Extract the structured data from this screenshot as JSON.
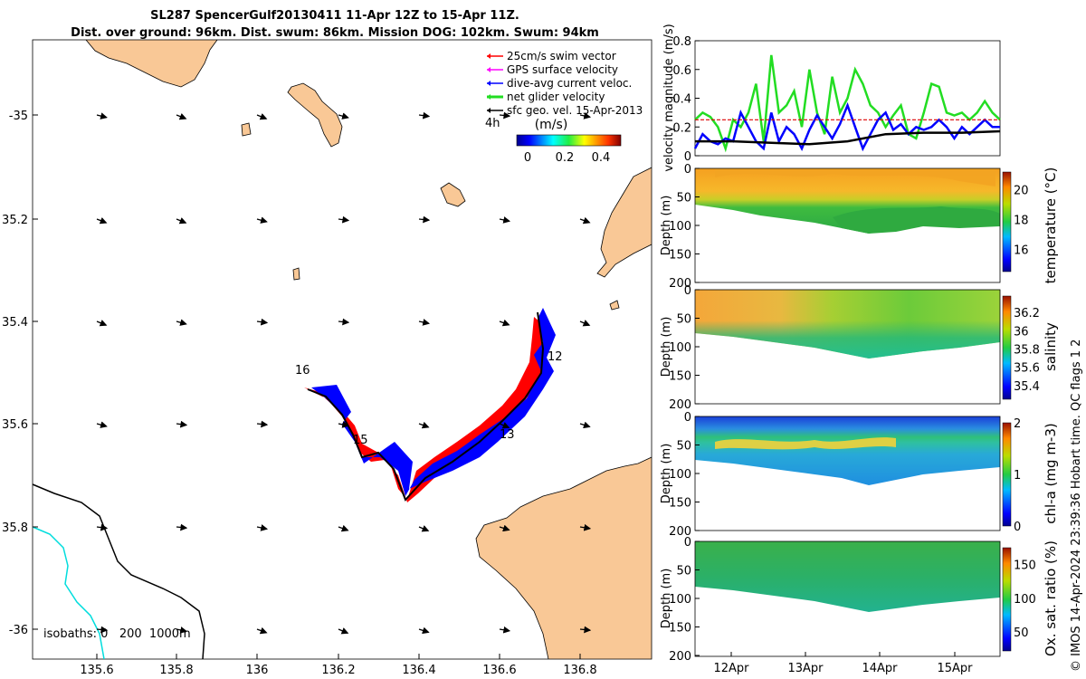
{
  "header": {
    "line1": "SL287 SpencerGulf20130411 11-Apr 12Z to 15-Apr 11Z.",
    "line2": "Dist. over ground: 96km. Dist. swum: 86km. Mission DOG: 102km. Swum: 94km"
  },
  "copyright": "© IMOS 14-Apr-2024 23:39:36 Hobart time. QC flags 1  2",
  "colors": {
    "land": "#f9c896",
    "glider_track": "#0000ff",
    "swim_vector": "#ff0000",
    "gps_surface": "#ff00ff",
    "net_glider": "#22dd22",
    "sfc_geo": "#000000",
    "isobath_200": "#000000",
    "isobath_1000": "#00dddd"
  },
  "map": {
    "lon_ticks": [
      "135.6",
      "135.8",
      "136",
      "136.2",
      "136.4",
      "136.6",
      "136.8"
    ],
    "lat_ticks": [
      "-35",
      "35.2",
      "35.4",
      "35.6",
      "35.8",
      "-36"
    ],
    "legend": [
      {
        "label": "25cm/s swim vector",
        "color": "#ff0000"
      },
      {
        "label": "GPS surface velocity",
        "color": "#ff00ff"
      },
      {
        "label": "dive-avg current veloc.",
        "color": "#0000ff"
      },
      {
        "label": "net glider velocity",
        "color": "#22dd22"
      },
      {
        "label": "sfc geo. vel. 15-Apr-2013",
        "color": "#000000"
      }
    ],
    "colorbar": {
      "title": "(m/s)",
      "ticks": [
        "0",
        "0.2",
        "0.4"
      ],
      "time_label": "4h"
    },
    "isobaths_label": "isobaths: 0   200  1000m",
    "day_labels": [
      "12",
      "13",
      "15",
      "16"
    ]
  },
  "chart_data": [
    {
      "type": "line",
      "ylabel": "velocity magnitude (m/s)",
      "ylim": [
        0,
        0.8
      ],
      "yticks": [
        "0",
        "0.2",
        "0.4",
        "0.6",
        "0.8"
      ],
      "xlim": [
        0,
        4
      ],
      "series": [
        {
          "color": "#22dd22",
          "x": [
            0,
            0.1,
            0.2,
            0.3,
            0.4,
            0.5,
            0.6,
            0.7,
            0.8,
            0.9,
            1.0,
            1.1,
            1.2,
            1.3,
            1.4,
            1.5,
            1.6,
            1.7,
            1.8,
            1.9,
            2.0,
            2.1,
            2.2,
            2.3,
            2.4,
            2.5,
            2.6,
            2.7,
            2.8,
            2.9,
            3.0,
            3.1,
            3.2,
            3.3,
            3.4,
            3.5,
            3.6,
            3.7,
            3.8,
            3.9,
            4.0
          ],
          "y": [
            0.25,
            0.3,
            0.27,
            0.2,
            0.05,
            0.25,
            0.2,
            0.3,
            0.5,
            0.1,
            0.7,
            0.3,
            0.35,
            0.45,
            0.2,
            0.6,
            0.3,
            0.15,
            0.55,
            0.3,
            0.4,
            0.6,
            0.5,
            0.35,
            0.3,
            0.2,
            0.28,
            0.35,
            0.15,
            0.12,
            0.3,
            0.5,
            0.48,
            0.3,
            0.28,
            0.3,
            0.25,
            0.3,
            0.38,
            0.3,
            0.25
          ]
        },
        {
          "color": "#0000ff",
          "x": [
            0,
            0.1,
            0.2,
            0.3,
            0.4,
            0.5,
            0.6,
            0.7,
            0.8,
            0.9,
            1.0,
            1.1,
            1.2,
            1.3,
            1.4,
            1.5,
            1.6,
            1.7,
            1.8,
            1.9,
            2.0,
            2.1,
            2.2,
            2.3,
            2.4,
            2.5,
            2.6,
            2.7,
            2.8,
            2.9,
            3.0,
            3.1,
            3.2,
            3.3,
            3.4,
            3.5,
            3.6,
            3.7,
            3.8,
            3.9,
            4.0
          ],
          "y": [
            0.05,
            0.15,
            0.1,
            0.08,
            0.12,
            0.1,
            0.3,
            0.2,
            0.1,
            0.05,
            0.3,
            0.1,
            0.2,
            0.15,
            0.05,
            0.18,
            0.28,
            0.2,
            0.12,
            0.22,
            0.35,
            0.2,
            0.05,
            0.15,
            0.25,
            0.3,
            0.18,
            0.22,
            0.15,
            0.2,
            0.18,
            0.2,
            0.25,
            0.2,
            0.12,
            0.2,
            0.15,
            0.2,
            0.25,
            0.2,
            0.2
          ]
        },
        {
          "color": "#dd0000",
          "x": [
            0,
            4
          ],
          "y": [
            0.25,
            0.25
          ]
        },
        {
          "color": "#000000",
          "x": [
            0,
            0.5,
            1.0,
            1.5,
            2.0,
            2.5,
            3.0,
            3.5,
            4.0
          ],
          "y": [
            0.1,
            0.1,
            0.09,
            0.08,
            0.1,
            0.15,
            0.16,
            0.16,
            0.17
          ]
        }
      ]
    },
    {
      "type": "heatmap",
      "ylabel": "Depth (m)",
      "ylim": [
        200,
        0
      ],
      "yticks": [
        "0",
        "50",
        "100",
        "150",
        "200"
      ],
      "colorbar_label": "temperature (°C)",
      "colorbar_ticks": [
        "16",
        "18",
        "20"
      ]
    },
    {
      "type": "heatmap",
      "ylabel": "Depth (m)",
      "ylim": [
        200,
        0
      ],
      "yticks": [
        "0",
        "50",
        "100",
        "150",
        "200"
      ],
      "colorbar_label": "salinity",
      "colorbar_ticks": [
        "35.4",
        "35.6",
        "35.8",
        "36",
        "36.2"
      ]
    },
    {
      "type": "heatmap",
      "ylabel": "Depth (m)",
      "ylim": [
        200,
        0
      ],
      "yticks": [
        "0",
        "50",
        "100",
        "150",
        "200"
      ],
      "colorbar_label": "chl-a (mg m-3)",
      "colorbar_ticks": [
        "0",
        "1",
        "2"
      ]
    },
    {
      "type": "heatmap",
      "ylabel": "Depth (m)",
      "ylim": [
        200,
        0
      ],
      "yticks": [
        "0",
        "50",
        "100",
        "150",
        "200"
      ],
      "colorbar_label": "Ox. sat. ratio (%)",
      "colorbar_ticks": [
        "50",
        "100",
        "150"
      ],
      "xticks": [
        "12Apr",
        "13Apr",
        "14Apr",
        "15Apr"
      ]
    }
  ]
}
